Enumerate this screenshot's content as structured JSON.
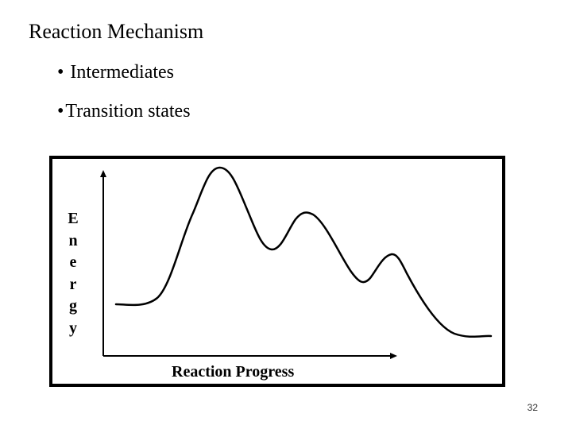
{
  "slide": {
    "title": "Reaction Mechanism",
    "bullets": [
      {
        "symbol": "•",
        "text": "Intermediates"
      },
      {
        "symbol": "•",
        "text": "Transition states"
      }
    ],
    "page_number": "32"
  },
  "diagram": {
    "y_axis_label": "Energy",
    "y_axis_letters": [
      "E",
      "n",
      "e",
      "r",
      "g",
      "y"
    ],
    "x_axis_label": "Reaction Progress"
  }
}
